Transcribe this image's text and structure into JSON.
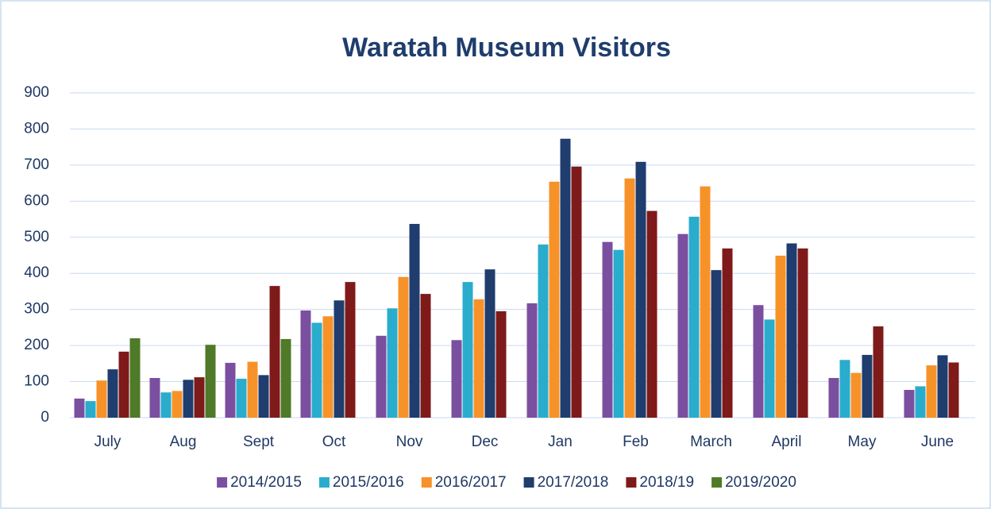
{
  "chart_data": {
    "type": "bar",
    "title": "Waratah Museum Visitors",
    "categories": [
      "July",
      "Aug",
      "Sept",
      "Oct",
      "Nov",
      "Dec",
      "Jan",
      "Feb",
      "March",
      "April",
      "May",
      "June"
    ],
    "series": [
      {
        "name": "2014/2015",
        "color": "#7b4fa0",
        "values": [
          53,
          110,
          152,
          297,
          227,
          215,
          317,
          487,
          509,
          312,
          110,
          77
        ]
      },
      {
        "name": "2015/2016",
        "color": "#2aaccd",
        "values": [
          46,
          70,
          108,
          263,
          303,
          376,
          480,
          465,
          557,
          272,
          160,
          87
        ]
      },
      {
        "name": "2016/2017",
        "color": "#f79229",
        "values": [
          103,
          74,
          155,
          281,
          390,
          328,
          654,
          663,
          641,
          449,
          124,
          145
        ]
      },
      {
        "name": "2017/2018",
        "color": "#1f3d6e",
        "values": [
          134,
          105,
          118,
          325,
          537,
          411,
          773,
          709,
          409,
          483,
          174,
          173
        ]
      },
      {
        "name": "2018/19",
        "color": "#7f1a1a",
        "values": [
          183,
          112,
          365,
          376,
          343,
          295,
          696,
          573,
          469,
          469,
          253,
          153
        ]
      },
      {
        "name": "2019/2020",
        "color": "#4f7a28",
        "values": [
          220,
          202,
          218,
          null,
          null,
          null,
          null,
          null,
          null,
          null,
          null,
          null
        ]
      }
    ],
    "ylim": [
      0,
      900
    ],
    "yticks": [
      0,
      100,
      200,
      300,
      400,
      500,
      600,
      700,
      800,
      900
    ],
    "grid": true,
    "legend": "bottom"
  }
}
